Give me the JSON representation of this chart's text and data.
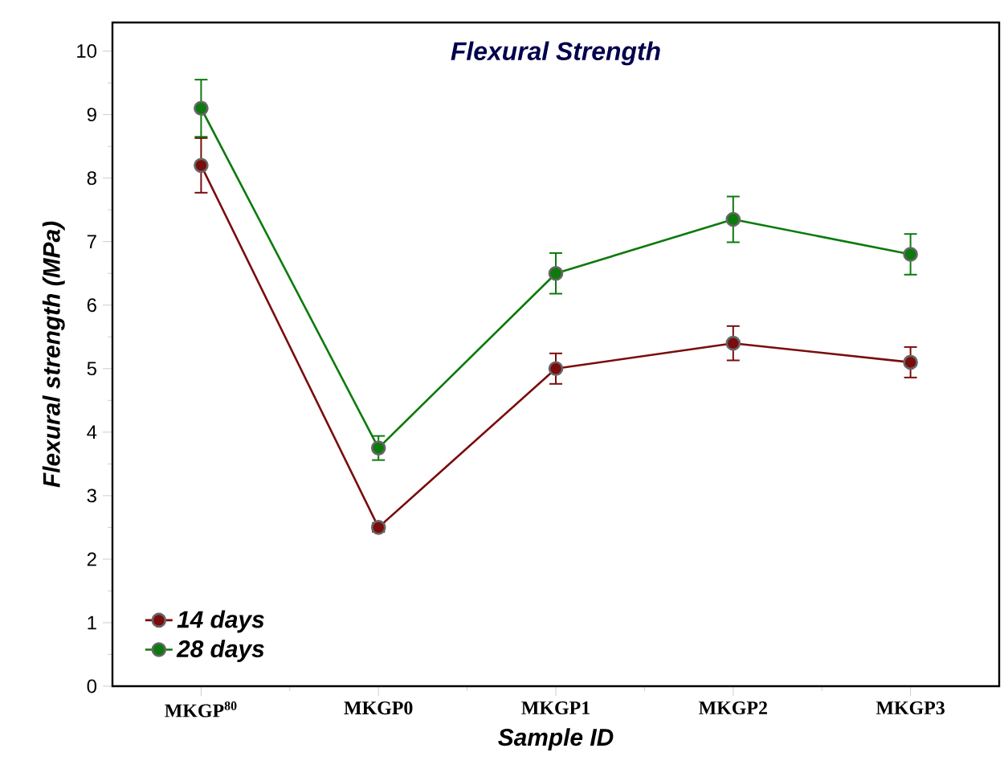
{
  "chart_data": {
    "type": "line",
    "title": "Flexural Strength",
    "xlabel": "Sample ID",
    "ylabel": "Flexural strength (MPa)",
    "categories": [
      "MKGP$^{80}$",
      "MKGP0",
      "MKGP1",
      "MKGP2",
      "MKGP3"
    ],
    "series": [
      {
        "name": "14 days",
        "color": "#7a0c0c",
        "values": [
          8.2,
          2.5,
          5.0,
          5.4,
          5.1
        ],
        "errors": [
          0.43,
          0.07,
          0.24,
          0.27,
          0.24
        ]
      },
      {
        "name": "28 days",
        "color": "#0c7a0c",
        "values": [
          9.1,
          3.75,
          6.5,
          7.35,
          6.8
        ],
        "errors": [
          0.45,
          0.19,
          0.32,
          0.36,
          0.32
        ]
      }
    ],
    "ylim": [
      0,
      10.45
    ],
    "yticks": [
      0,
      1,
      2,
      3,
      4,
      5,
      6,
      7,
      8,
      9,
      10
    ],
    "legend": "bottom left",
    "marker": "circle",
    "line_style": "solid",
    "grid": false
  }
}
